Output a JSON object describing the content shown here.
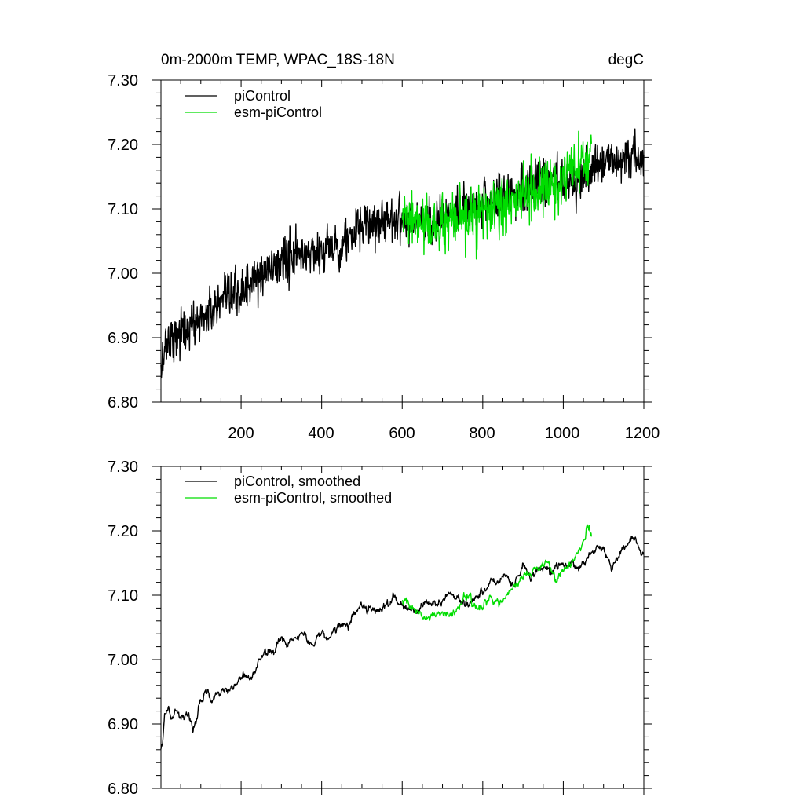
{
  "chart_data": [
    {
      "type": "line",
      "title": "0m-2000m TEMP, WPAC_18S-18N",
      "units": "degC",
      "xlabel": "",
      "ylabel": "",
      "xlim": [
        1,
        1200
      ],
      "ylim": [
        6.8,
        7.3
      ],
      "xticks": [
        200,
        400,
        600,
        800,
        1000,
        1200
      ],
      "xtick_labels": [
        "200",
        "400",
        "600",
        "800",
        "1000",
        "1200"
      ],
      "yticks": [
        6.8,
        6.9,
        7.0,
        7.1,
        7.2,
        7.3
      ],
      "ytick_labels": [
        "6.80",
        "6.90",
        "7.00",
        "7.10",
        "7.20",
        "7.30"
      ],
      "legend": "top-left",
      "series": [
        {
          "name": "piControl",
          "color": "#000000",
          "x": [
            1,
            10,
            25,
            50,
            75,
            100,
            150,
            200,
            250,
            300,
            350,
            400,
            450,
            500,
            550,
            600,
            650,
            700,
            750,
            800,
            850,
            900,
            950,
            1000,
            1050,
            1100,
            1150,
            1200
          ],
          "values": [
            6.84,
            6.89,
            6.9,
            6.91,
            6.915,
            6.93,
            6.95,
            6.97,
            6.995,
            7.02,
            7.03,
            7.035,
            7.045,
            7.07,
            7.085,
            7.085,
            7.08,
            7.085,
            7.095,
            7.11,
            7.12,
            7.135,
            7.14,
            7.145,
            7.15,
            7.17,
            7.18,
            7.17
          ],
          "noise": 0.033
        },
        {
          "name": "esm-piControl",
          "color": "#00dd00",
          "x": [
            600,
            650,
            700,
            750,
            800,
            850,
            900,
            950,
            1000,
            1050,
            1070
          ],
          "values": [
            7.085,
            7.075,
            7.07,
            7.08,
            7.095,
            7.1,
            7.12,
            7.13,
            7.14,
            7.17,
            7.18
          ],
          "noise": 0.038
        }
      ]
    },
    {
      "type": "line",
      "title": "",
      "xlabel": "",
      "ylabel": "",
      "xlim": [
        1,
        1200
      ],
      "ylim": [
        6.8,
        7.3
      ],
      "xticks": [
        200,
        400,
        600,
        800,
        1000,
        1200
      ],
      "yticks": [
        6.8,
        6.9,
        7.0,
        7.1,
        7.2,
        7.3
      ],
      "ytick_labels": [
        "6.80",
        "6.90",
        "7.00",
        "7.10",
        "7.20",
        "7.30"
      ],
      "legend": "top-left",
      "series": [
        {
          "name": "piControl, smoothed",
          "color": "#000000",
          "x": [
            1,
            5,
            10,
            20,
            30,
            40,
            50,
            60,
            70,
            80,
            100,
            120,
            140,
            160,
            180,
            200,
            220,
            240,
            260,
            280,
            300,
            320,
            340,
            360,
            380,
            400,
            420,
            440,
            460,
            480,
            500,
            520,
            540,
            560,
            580,
            600,
            620,
            640,
            660,
            680,
            700,
            720,
            740,
            760,
            780,
            800,
            820,
            840,
            860,
            880,
            900,
            920,
            940,
            960,
            980,
            1000,
            1020,
            1040,
            1060,
            1080,
            1100,
            1120,
            1140,
            1160,
            1180,
            1200
          ],
          "values": [
            6.865,
            6.87,
            6.92,
            6.925,
            6.905,
            6.92,
            6.915,
            6.91,
            6.915,
            6.89,
            6.93,
            6.955,
            6.945,
            6.96,
            6.955,
            6.975,
            6.97,
            6.99,
            7.02,
            7.01,
            7.035,
            7.025,
            7.03,
            7.04,
            7.02,
            7.035,
            7.03,
            7.055,
            7.05,
            7.07,
            7.075,
            7.085,
            7.075,
            7.08,
            7.09,
            7.085,
            7.08,
            7.07,
            7.095,
            7.085,
            7.09,
            7.1,
            7.095,
            7.09,
            7.1,
            7.105,
            7.12,
            7.125,
            7.13,
            7.12,
            7.145,
            7.13,
            7.15,
            7.14,
            7.14,
            7.145,
            7.15,
            7.145,
            7.16,
            7.17,
            7.175,
            7.14,
            7.17,
            7.18,
            7.185,
            7.165
          ]
        },
        {
          "name": "esm-piControl, smoothed",
          "color": "#00dd00",
          "x": [
            600,
            620,
            640,
            660,
            680,
            700,
            720,
            740,
            760,
            780,
            800,
            820,
            840,
            860,
            870,
            880,
            900,
            920,
            940,
            960,
            980,
            1000,
            1020,
            1040,
            1050,
            1060,
            1070
          ],
          "values": [
            7.09,
            7.085,
            7.075,
            7.06,
            7.07,
            7.075,
            7.07,
            7.08,
            7.095,
            7.09,
            7.085,
            7.1,
            7.09,
            7.105,
            7.11,
            7.115,
            7.13,
            7.14,
            7.145,
            7.15,
            7.13,
            7.135,
            7.15,
            7.165,
            7.185,
            7.205,
            7.19
          ]
        }
      ]
    }
  ]
}
